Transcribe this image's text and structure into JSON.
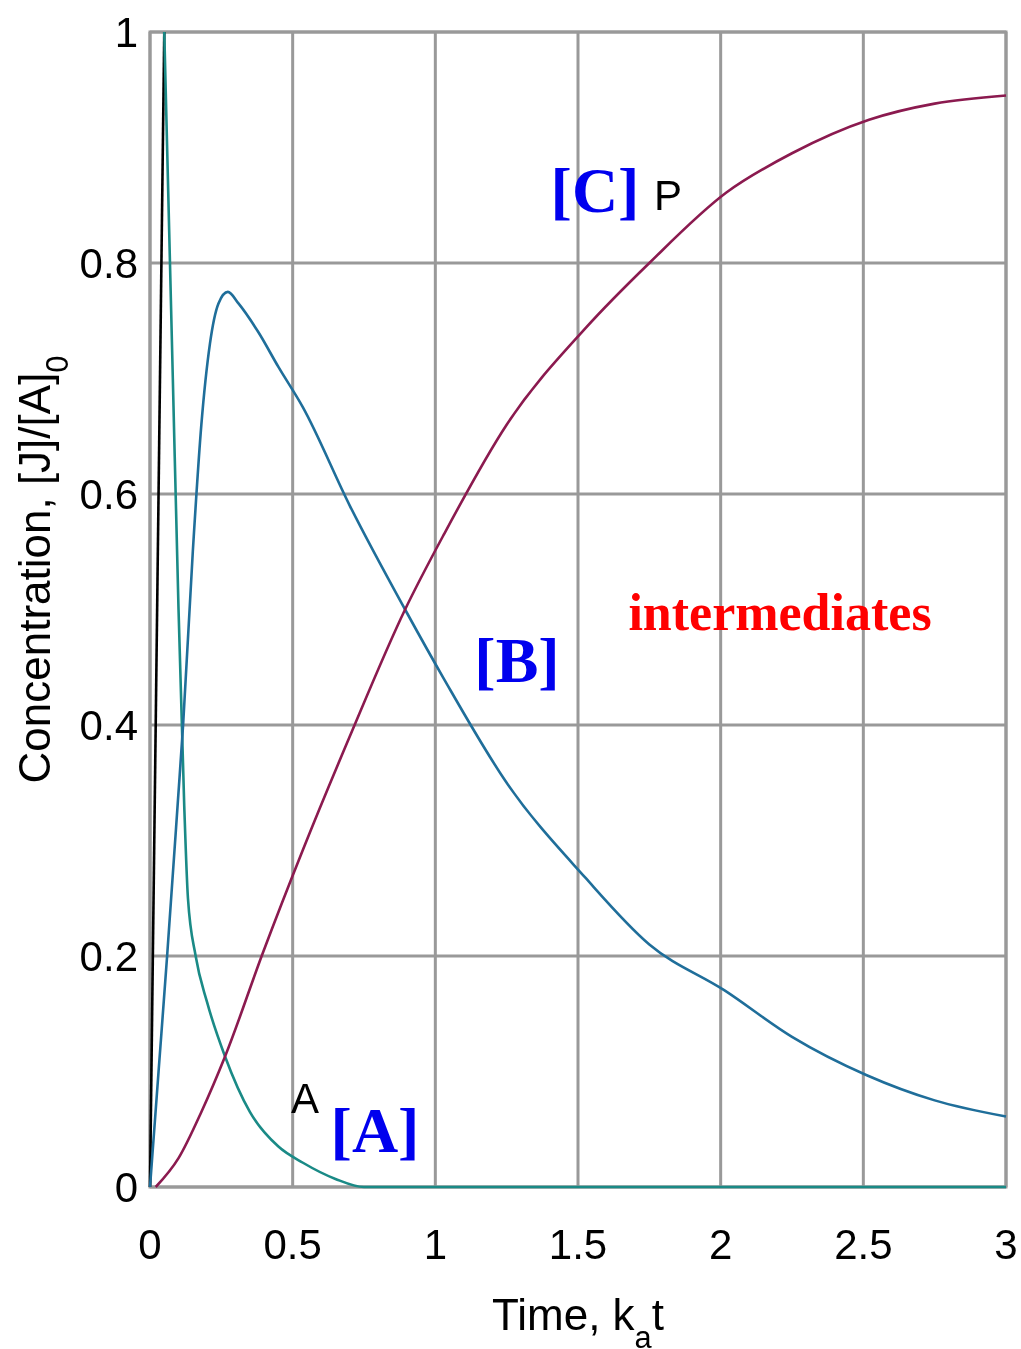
{
  "chart_data": {
    "type": "line",
    "xlabel": "Time, k$_{a}$t",
    "ylabel": "Concentration, [J]/[A]$_{0}$",
    "xlim": [
      0,
      3
    ],
    "ylim": [
      0,
      1
    ],
    "xticks": [
      0,
      0.5,
      1,
      1.5,
      2,
      2.5,
      3
    ],
    "yticks": [
      0,
      0.2,
      0.4,
      0.6,
      0.8,
      1
    ],
    "grid": true,
    "marker": "none",
    "line_style": "solid",
    "series": [
      {
        "color": "#000000",
        "x": [
          0,
          0.05
        ],
        "values": [
          0,
          1
        ]
      },
      {
        "color": "#1a8a86",
        "x": [
          0.05,
          0.08,
          0.1,
          0.12,
          0.133,
          0.16,
          0.2,
          0.263,
          0.35,
          0.45,
          0.536,
          0.65,
          0.75,
          1,
          1.5,
          2,
          2.5,
          3
        ],
        "values": [
          1,
          0.7,
          0.5,
          0.33,
          0.25,
          0.2,
          0.16,
          0.113,
          0.065,
          0.035,
          0.021,
          0.007,
          0,
          0,
          0,
          0,
          0,
          0
        ]
      },
      {
        "color": "#1f6e9a",
        "x": [
          0,
          0.03,
          0.06,
          0.098,
          0.116,
          0.15,
          0.18,
          0.21,
          0.24,
          0.273,
          0.31,
          0.38,
          0.45,
          0.536,
          0.7,
          0.894,
          1.03,
          1.25,
          1.525,
          1.75,
          2.015,
          2.25,
          2.51,
          2.75,
          3
        ],
        "values": [
          0,
          0.1,
          0.2,
          0.335,
          0.4,
          0.55,
          0.66,
          0.73,
          0.765,
          0.775,
          0.765,
          0.74,
          0.71,
          0.675,
          0.59,
          0.5,
          0.44,
          0.35,
          0.268,
          0.21,
          0.17,
          0.13,
          0.097,
          0.075,
          0.061
        ]
      },
      {
        "color": "#8b1a4f",
        "x": [
          0.02,
          0.1,
          0.18,
          0.263,
          0.396,
          0.536,
          0.7,
          0.894,
          1.03,
          1.25,
          1.528,
          1.75,
          2.02,
          2.25,
          2.52,
          2.75,
          3
        ],
        "values": [
          0,
          0.025,
          0.065,
          0.113,
          0.203,
          0.292,
          0.39,
          0.5,
          0.565,
          0.66,
          0.744,
          0.8,
          0.861,
          0.895,
          0.924,
          0.938,
          0.945
        ]
      }
    ],
    "annotations": [
      "A",
      "[A]",
      "P",
      "[C]",
      "[B]",
      "intermediates"
    ]
  }
}
